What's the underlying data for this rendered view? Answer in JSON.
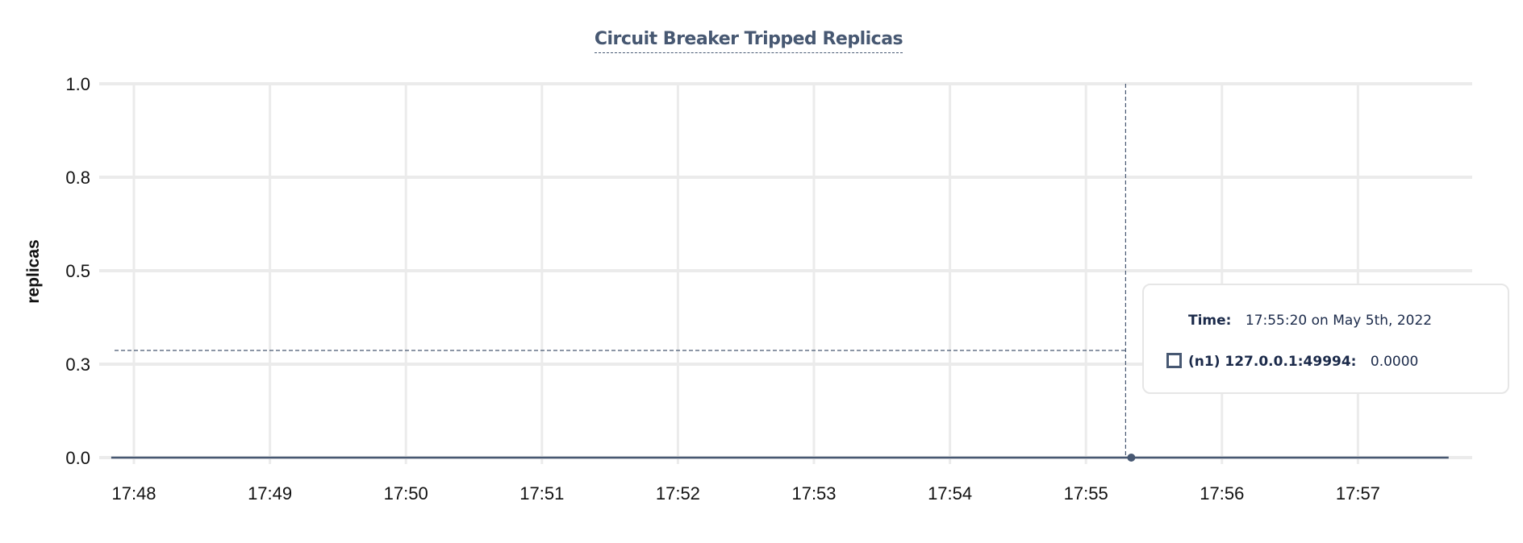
{
  "chart_data": {
    "type": "line",
    "title": "Circuit Breaker Tripped Replicas",
    "xlabel": "",
    "ylabel": "replicas",
    "x_ticks": [
      "17:48",
      "17:49",
      "17:50",
      "17:51",
      "17:52",
      "17:53",
      "17:54",
      "17:55",
      "17:56",
      "17:57"
    ],
    "y_ticks": [
      "1.0",
      "0.8",
      "0.5",
      "0.3",
      "0.0"
    ],
    "ylim": [
      0,
      1
    ],
    "grid": true,
    "x_range": [
      "17:47:50",
      "17:57:40"
    ],
    "series": [
      {
        "name": "(n1) 127.0.0.1:49994",
        "color": "#475872",
        "x": [
          "17:47:50",
          "17:57:40"
        ],
        "y": [
          0,
          0
        ]
      }
    ],
    "hover": {
      "time": "17:55:20",
      "y": 0
    }
  },
  "tooltip": {
    "time_label": "Time:",
    "time_value": "17:55:20 on May 5th, 2022",
    "series_label": "(n1) 127.0.0.1:49994:",
    "series_value": "0.0000"
  }
}
